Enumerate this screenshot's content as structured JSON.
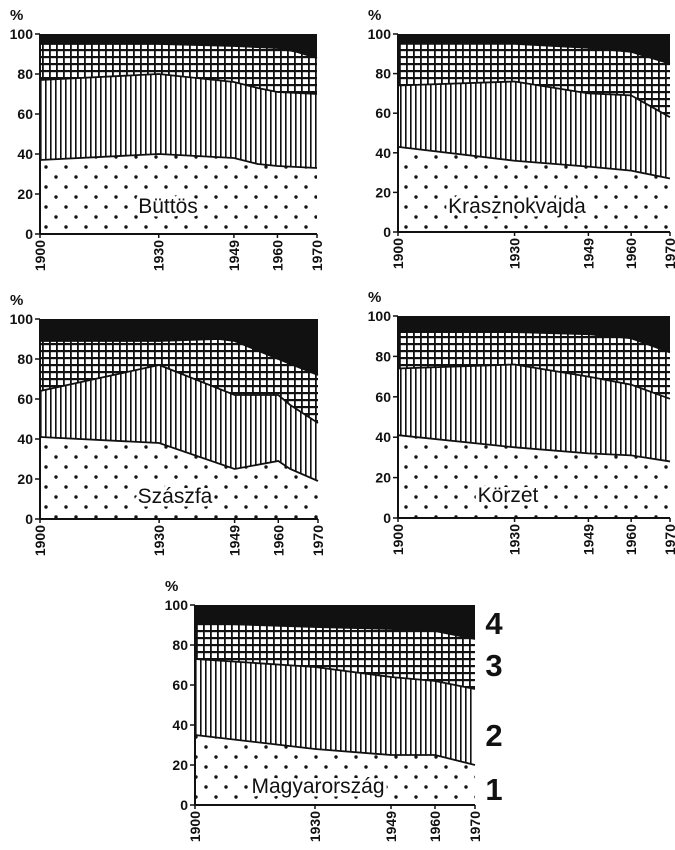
{
  "figure": {
    "series_labels": [
      "1",
      "2",
      "3",
      "4"
    ],
    "colors": {
      "ink": "#111111",
      "paper": "#ffffff"
    },
    "pattern_names": [
      "dots-pattern",
      "vertical-lines-pattern",
      "grid-pattern",
      "solid-black"
    ]
  },
  "chart_data": [
    {
      "type": "area",
      "stacked": true,
      "title": "Büttös",
      "ylabel": "%",
      "ylim": [
        0,
        100
      ],
      "yticks": [
        0,
        20,
        40,
        60,
        80,
        100
      ],
      "x": [
        1900,
        1930,
        1949,
        1960,
        1970
      ],
      "xticks": [
        "1900",
        "1930",
        "1949",
        "1960",
        "1970"
      ],
      "boundaries": [
        {
          "name": "1",
          "x": [
            1900,
            1930,
            1949,
            1955,
            1960,
            1970
          ],
          "y": [
            37,
            40,
            38,
            35,
            34,
            33
          ]
        },
        {
          "name": "2",
          "x": [
            1900,
            1930,
            1949,
            1955,
            1960,
            1970
          ],
          "y": [
            77,
            80,
            76,
            73,
            71,
            70
          ]
        },
        {
          "name": "3",
          "x": [
            1900,
            1930,
            1949,
            1960,
            1965,
            1970
          ],
          "y": [
            95,
            95,
            94,
            93,
            91,
            88
          ]
        }
      ]
    },
    {
      "type": "area",
      "stacked": true,
      "title": "Krasznokvajda",
      "ylabel": "%",
      "ylim": [
        0,
        100
      ],
      "yticks": [
        0,
        20,
        40,
        60,
        80,
        100
      ],
      "x": [
        1900,
        1930,
        1949,
        1960,
        1970
      ],
      "xticks": [
        "1900",
        "1930",
        "1949",
        "1960",
        "1970"
      ],
      "boundaries": [
        {
          "name": "1",
          "x": [
            1900,
            1930,
            1949,
            1960,
            1970
          ],
          "y": [
            43,
            36,
            33,
            31,
            27
          ]
        },
        {
          "name": "2",
          "x": [
            1900,
            1930,
            1949,
            1960,
            1970
          ],
          "y": [
            74,
            76,
            70,
            69,
            58
          ]
        },
        {
          "name": "3",
          "x": [
            1900,
            1930,
            1949,
            1960,
            1965,
            1970
          ],
          "y": [
            95,
            95,
            93,
            91,
            88,
            85
          ]
        }
      ]
    },
    {
      "type": "area",
      "stacked": true,
      "title": "Szászfa",
      "ylabel": "%",
      "ylim": [
        0,
        100
      ],
      "yticks": [
        0,
        20,
        40,
        60,
        80,
        100
      ],
      "x": [
        1900,
        1930,
        1949,
        1960,
        1970
      ],
      "xticks": [
        "1900",
        "1930",
        "1949",
        "1960",
        "1970"
      ],
      "boundaries": [
        {
          "name": "1",
          "x": [
            1900,
            1930,
            1949,
            1960,
            1963,
            1970
          ],
          "y": [
            41,
            38,
            25,
            29,
            25,
            19
          ]
        },
        {
          "name": "2",
          "x": [
            1900,
            1930,
            1949,
            1960,
            1963,
            1970
          ],
          "y": [
            64,
            77,
            62,
            62,
            57,
            48
          ]
        },
        {
          "name": "3",
          "x": [
            1900,
            1930,
            1945,
            1949,
            1960,
            1970
          ],
          "y": [
            89,
            89,
            90,
            89,
            80,
            72
          ]
        }
      ]
    },
    {
      "type": "area",
      "stacked": true,
      "title": "Körzet",
      "ylabel": "%",
      "ylim": [
        0,
        100
      ],
      "yticks": [
        0,
        20,
        40,
        60,
        80,
        100
      ],
      "x": [
        1900,
        1930,
        1949,
        1960,
        1970
      ],
      "xticks": [
        "1900",
        "1930",
        "1949",
        "1960",
        "1970"
      ],
      "boundaries": [
        {
          "name": "1",
          "x": [
            1900,
            1930,
            1949,
            1960,
            1970
          ],
          "y": [
            41,
            35,
            32,
            31,
            28
          ]
        },
        {
          "name": "2",
          "x": [
            1900,
            1930,
            1949,
            1960,
            1970
          ],
          "y": [
            74,
            76,
            70,
            66,
            59
          ]
        },
        {
          "name": "3",
          "x": [
            1900,
            1930,
            1949,
            1960,
            1970
          ],
          "y": [
            92,
            92,
            91,
            89,
            82
          ]
        }
      ]
    },
    {
      "type": "area",
      "stacked": true,
      "title": "Magyarország",
      "ylabel": "%",
      "ylim": [
        0,
        100
      ],
      "yticks": [
        0,
        20,
        40,
        60,
        80,
        100
      ],
      "x": [
        1900,
        1930,
        1949,
        1960,
        1970
      ],
      "xticks": [
        "1900",
        "1930",
        "1949",
        "1960",
        "1970"
      ],
      "legend": [
        "1",
        "2",
        "3",
        "4"
      ],
      "legend_position": "right",
      "boundaries": [
        {
          "name": "1",
          "x": [
            1900,
            1930,
            1949,
            1960,
            1970
          ],
          "y": [
            35,
            28,
            25,
            25,
            20
          ]
        },
        {
          "name": "2",
          "x": [
            1900,
            1930,
            1949,
            1960,
            1970
          ],
          "y": [
            73,
            69,
            64,
            62,
            58
          ]
        },
        {
          "name": "3",
          "x": [
            1900,
            1930,
            1949,
            1960,
            1970
          ],
          "y": [
            91,
            89,
            88,
            87,
            83
          ]
        }
      ]
    }
  ]
}
